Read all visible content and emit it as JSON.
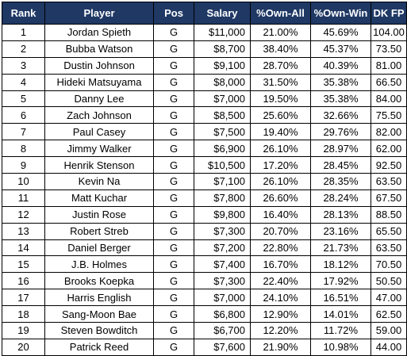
{
  "table": {
    "headers": [
      "Rank",
      "Player",
      "Pos",
      "Salary",
      "%Own-All",
      "%Own-Win",
      "DK FP"
    ],
    "rows": [
      [
        "1",
        "Jordan Spieth",
        "G",
        "$11,000",
        "21.00%",
        "45.69%",
        "104.00"
      ],
      [
        "2",
        "Bubba Watson",
        "G",
        "$8,700",
        "38.40%",
        "45.37%",
        "73.50"
      ],
      [
        "3",
        "Dustin Johnson",
        "G",
        "$9,100",
        "28.70%",
        "40.39%",
        "81.00"
      ],
      [
        "4",
        "Hideki Matsuyama",
        "G",
        "$8,000",
        "31.50%",
        "35.38%",
        "66.50"
      ],
      [
        "5",
        "Danny Lee",
        "G",
        "$7,000",
        "19.50%",
        "35.38%",
        "84.00"
      ],
      [
        "6",
        "Zach Johnson",
        "G",
        "$8,500",
        "25.60%",
        "32.66%",
        "75.50"
      ],
      [
        "7",
        "Paul Casey",
        "G",
        "$7,500",
        "19.40%",
        "29.76%",
        "82.00"
      ],
      [
        "8",
        "Jimmy Walker",
        "G",
        "$6,900",
        "26.10%",
        "28.97%",
        "62.00"
      ],
      [
        "9",
        "Henrik Stenson",
        "G",
        "$10,500",
        "17.20%",
        "28.45%",
        "92.50"
      ],
      [
        "10",
        "Kevin Na",
        "G",
        "$7,100",
        "26.10%",
        "28.35%",
        "63.50"
      ],
      [
        "11",
        "Matt Kuchar",
        "G",
        "$7,800",
        "26.60%",
        "28.24%",
        "67.50"
      ],
      [
        "12",
        "Justin Rose",
        "G",
        "$9,800",
        "16.40%",
        "28.13%",
        "88.50"
      ],
      [
        "13",
        "Robert Streb",
        "G",
        "$7,300",
        "20.70%",
        "23.16%",
        "65.50"
      ],
      [
        "14",
        "Daniel Berger",
        "G",
        "$7,200",
        "22.80%",
        "21.73%",
        "63.50"
      ],
      [
        "15",
        "J.B. Holmes",
        "G",
        "$7,400",
        "16.70%",
        "18.12%",
        "70.50"
      ],
      [
        "16",
        "Brooks Koepka",
        "G",
        "$7,300",
        "22.40%",
        "17.92%",
        "50.50"
      ],
      [
        "17",
        "Harris English",
        "G",
        "$7,000",
        "24.10%",
        "16.51%",
        "47.00"
      ],
      [
        "18",
        "Sang-Moon Bae",
        "G",
        "$6,800",
        "12.90%",
        "14.01%",
        "62.50"
      ],
      [
        "19",
        "Steven Bowditch",
        "G",
        "$6,700",
        "12.20%",
        "11.72%",
        "59.00"
      ],
      [
        "20",
        "Patrick Reed",
        "G",
        "$7,600",
        "21.90%",
        "10.98%",
        "44.00"
      ]
    ]
  }
}
